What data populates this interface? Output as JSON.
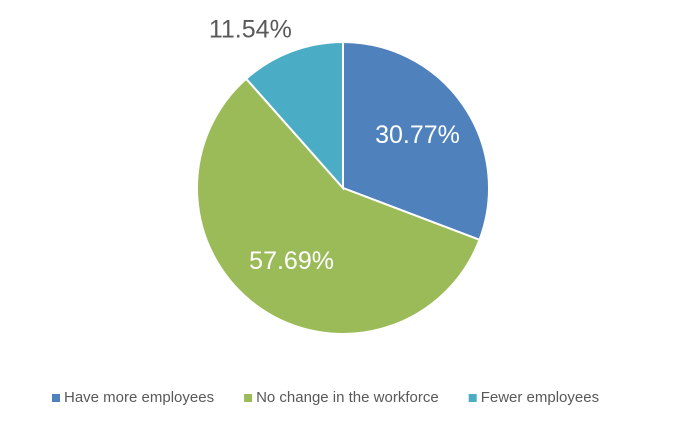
{
  "chart_data": {
    "type": "pie",
    "categories": [
      "Have more employees",
      "No change in the workforce",
      "Fewer employees"
    ],
    "values": [
      30.77,
      57.69,
      11.54
    ],
    "value_labels": [
      "30.77%",
      "57.69%",
      "11.54%"
    ],
    "colors": [
      "#4f81bd",
      "#9bbb59",
      "#4bacc6"
    ],
    "legend": "bottom"
  }
}
